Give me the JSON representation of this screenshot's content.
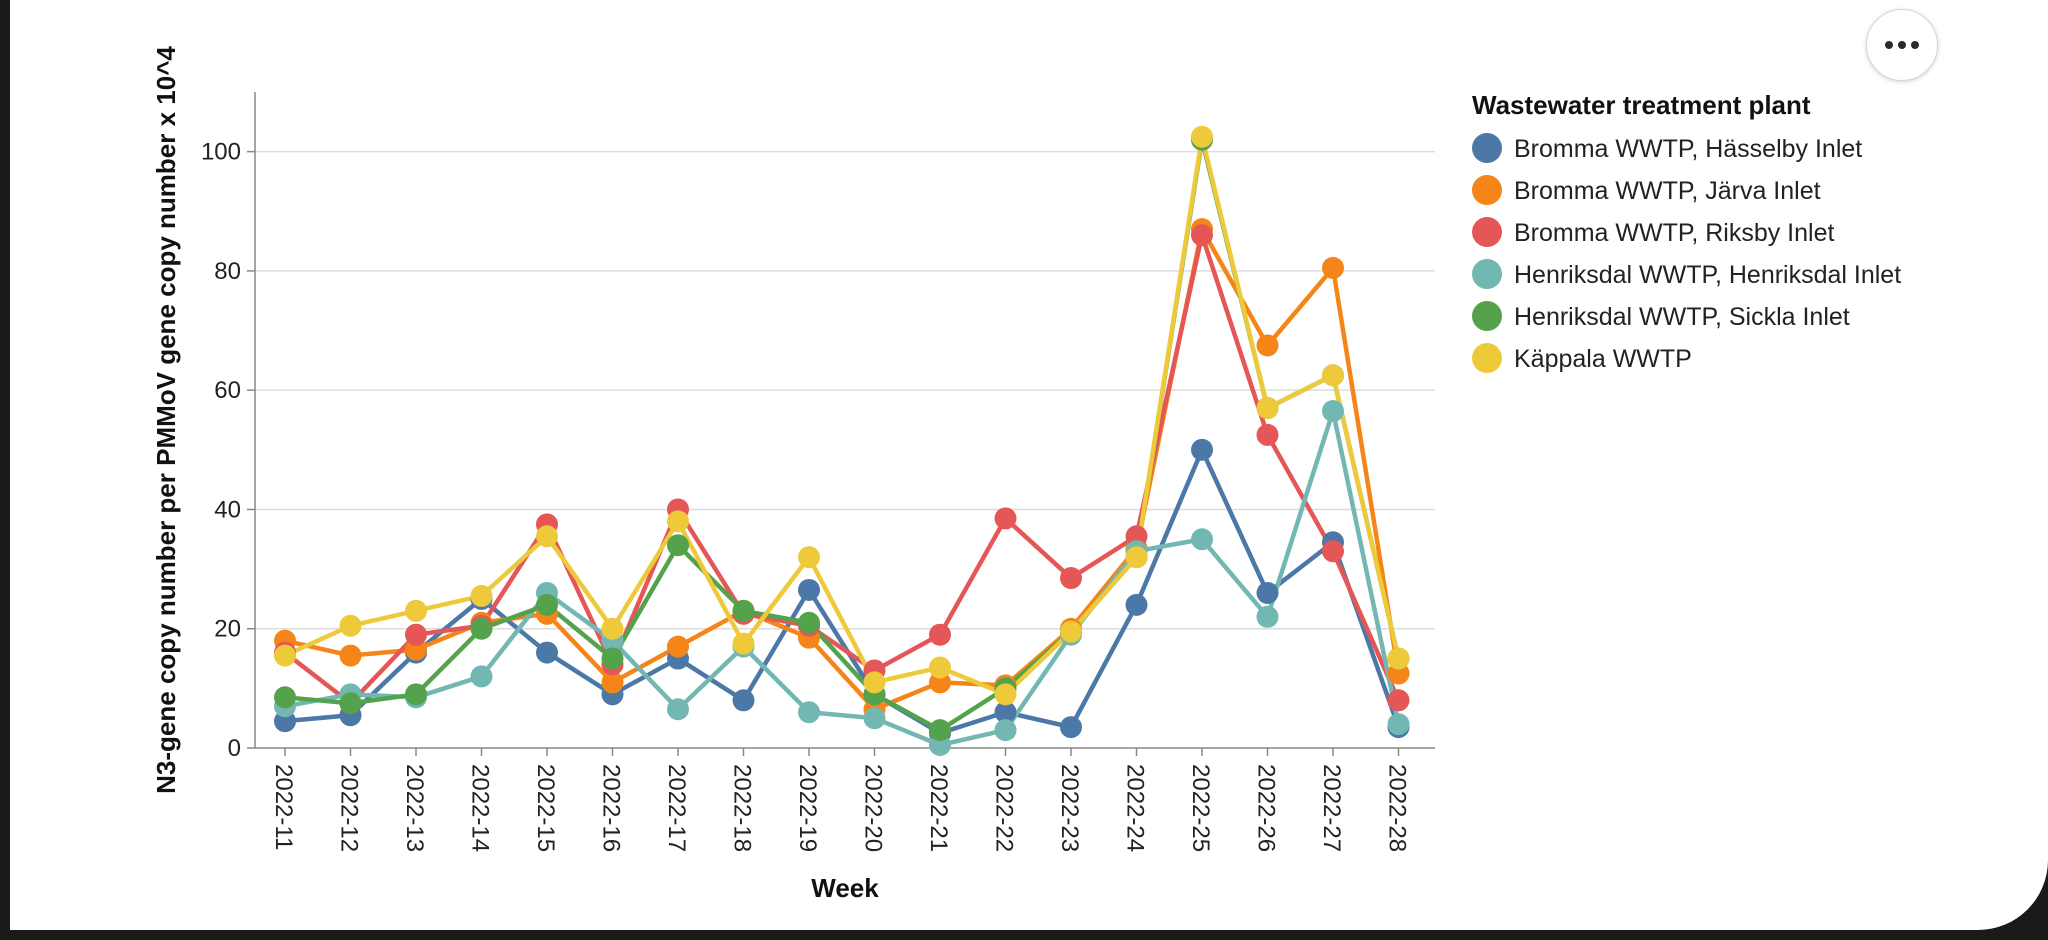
{
  "chart_data": {
    "type": "line",
    "xlabel": "Week",
    "ylabel": "N3-gene copy number per PMMoV gene copy number x 10^4",
    "ylim": [
      0,
      110
    ],
    "yticks": [
      0,
      20,
      40,
      60,
      80,
      100
    ],
    "grid": true,
    "legend_title": "Wastewater treatment plant",
    "legend_position": "right",
    "x": [
      "2022-11",
      "2022-12",
      "2022-13",
      "2022-14",
      "2022-15",
      "2022-16",
      "2022-17",
      "2022-18",
      "2022-19",
      "2022-20",
      "2022-21",
      "2022-22",
      "2022-23",
      "2022-24",
      "2022-25",
      "2022-26",
      "2022-27",
      "2022-28"
    ],
    "series": [
      {
        "name": "Bromma WWTP, Hässelby Inlet",
        "color": "#4c78a8",
        "values": [
          4.5,
          5.5,
          16,
          25,
          16,
          9,
          15,
          8,
          26.5,
          9,
          2.5,
          6,
          3.5,
          24,
          50,
          26,
          34.5,
          3.5
        ]
      },
      {
        "name": "Bromma WWTP, Järva Inlet",
        "color": "#f58518",
        "values": [
          18,
          15.5,
          16.5,
          21,
          22.5,
          11,
          17,
          23,
          18.5,
          6.5,
          11,
          10.5,
          20,
          33.5,
          87,
          67.5,
          80.5,
          12.5
        ]
      },
      {
        "name": "Bromma WWTP, Riksby Inlet",
        "color": "#e45756",
        "values": [
          16,
          7.5,
          19,
          20.5,
          37.5,
          14,
          40,
          22.5,
          20.5,
          13,
          19,
          38.5,
          28.5,
          35.5,
          86,
          52.5,
          33,
          8
        ]
      },
      {
        "name": "Henriksdal WWTP, Henriksdal Inlet",
        "color": "#72b7b2",
        "values": [
          7,
          9,
          8.5,
          12,
          26,
          18,
          6.5,
          17,
          6,
          5,
          0.5,
          3,
          19,
          33,
          35,
          22,
          56.5,
          4
        ]
      },
      {
        "name": "Henriksdal WWTP, Sickla Inlet",
        "color": "#54a24b",
        "values": [
          8.5,
          7.5,
          9,
          20,
          24,
          15,
          34,
          23,
          21,
          9,
          3,
          10,
          19.5,
          32,
          102,
          57,
          62.5,
          15
        ]
      },
      {
        "name": "Käppala WWTP",
        "color": "#eeca3b",
        "values": [
          15.5,
          20.5,
          23,
          25.5,
          35.5,
          20,
          38,
          17.5,
          32,
          11,
          13.5,
          9,
          19.5,
          32,
          102.5,
          57,
          62.5,
          15
        ]
      }
    ]
  }
}
